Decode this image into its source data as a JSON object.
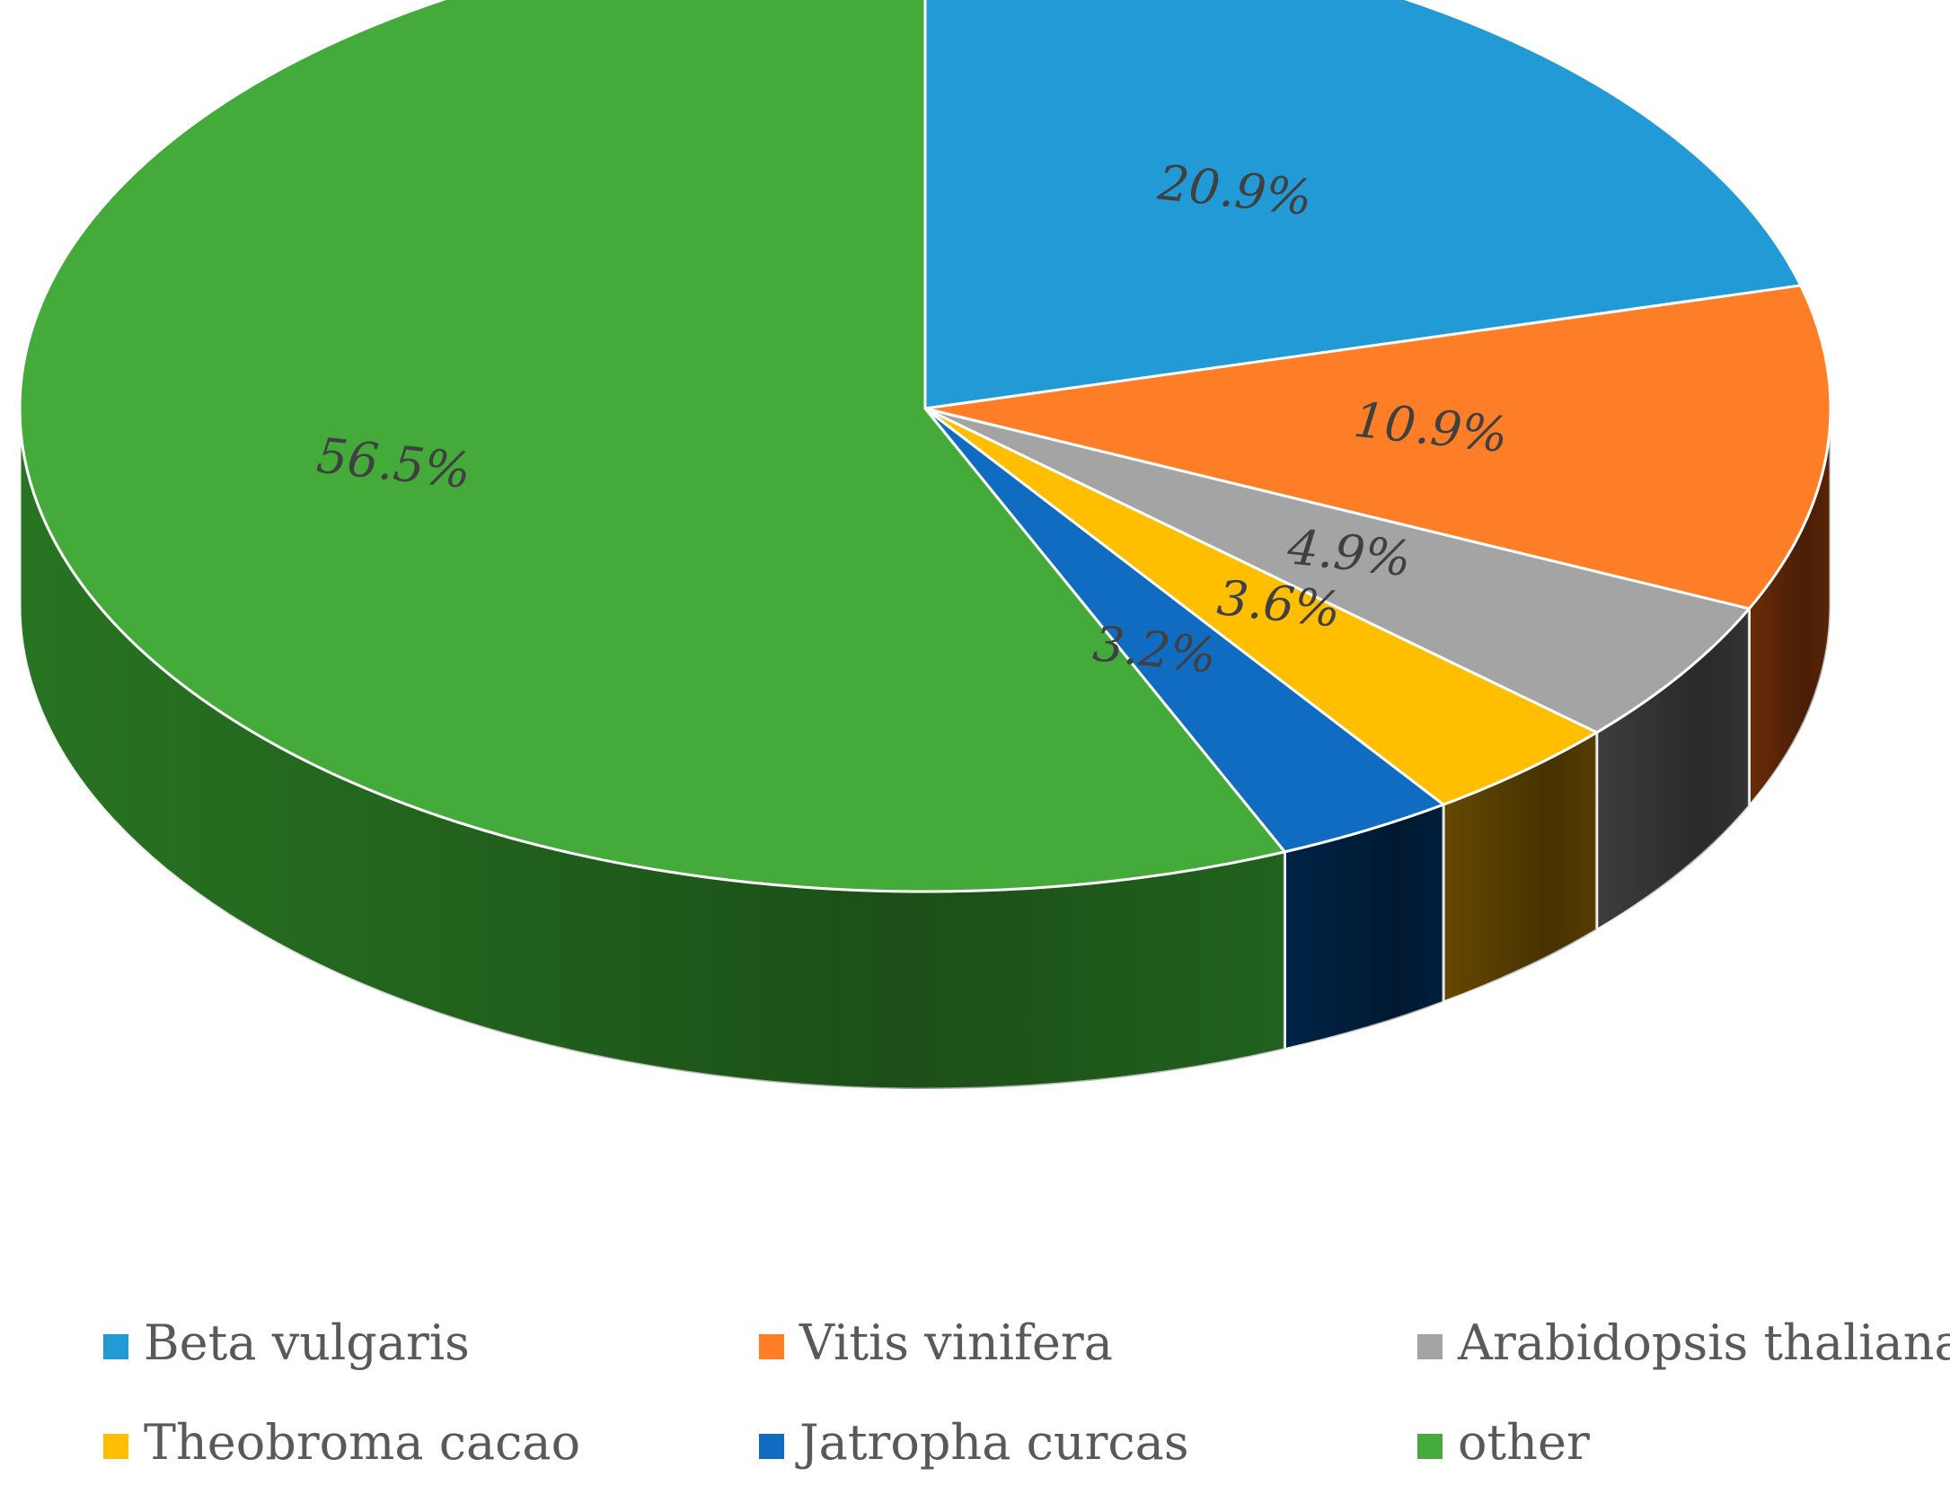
{
  "chart_data": {
    "type": "pie",
    "style": "3d",
    "categories": [
      "Beta vulgaris",
      "Vitis vinifera",
      "Arabidopsis thaliana",
      "Theobroma cacao",
      "Jatropha curcas",
      "other"
    ],
    "values": [
      20.9,
      10.9,
      4.9,
      3.6,
      3.2,
      56.5
    ],
    "data_labels": [
      "20.9%",
      "10.9%",
      "4.9%",
      "3.6%",
      "3.2%",
      "56.5%"
    ],
    "colors": [
      "#229ad6",
      "#fd7e27",
      "#a4a4a4",
      "#ffbf00",
      "#0f6cc1",
      "#44aa3a"
    ],
    "side_colors": [
      "#155f86",
      "#6f2e08",
      "#404040",
      "#6b4c00",
      "#00264b",
      "#2a7a24"
    ],
    "label_colors": [
      "#404040",
      "#404040",
      "#404040",
      "#404040",
      "#404040",
      "#404040"
    ],
    "legend_position": "bottom"
  }
}
